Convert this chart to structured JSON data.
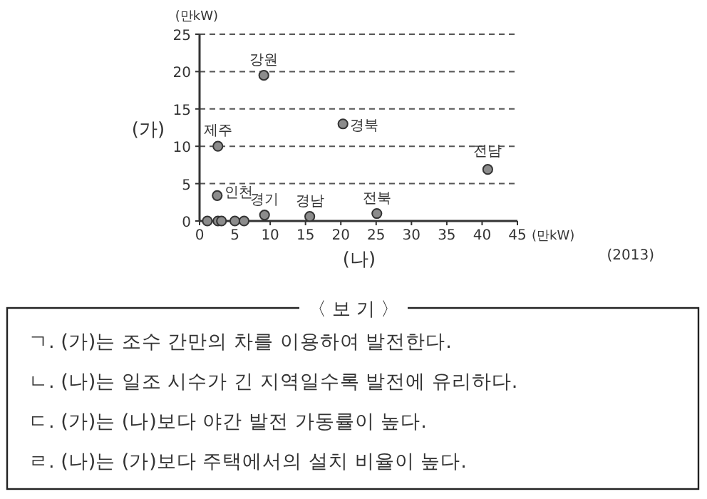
{
  "chart_data": {
    "type": "scatter",
    "xlabel": "(나)",
    "ylabel": "(가)",
    "x": [
      9.1,
      20.3,
      2.6,
      2.5,
      9.2,
      15.6,
      25.1,
      40.8,
      1.1,
      2.6,
      3.1,
      5.0,
      6.3
    ],
    "values": [
      19.5,
      13.0,
      10.0,
      3.4,
      0.8,
      0.6,
      1.0,
      6.9,
      0,
      0,
      0,
      0,
      0
    ],
    "color": "#8c8c8c",
    "marker": "circle",
    "grid": "y",
    "xlim": [
      0,
      45
    ],
    "xticks": [
      0,
      5,
      10,
      15,
      20,
      25,
      30,
      35,
      40,
      45
    ],
    "ylim": [
      0,
      25
    ],
    "yticks": [
      0,
      5,
      10,
      15,
      20,
      25
    ],
    "annotations": [
      {
        "text": "강원",
        "x": 9.1,
        "y": 19.5
      },
      {
        "text": "경북",
        "x": 20.3,
        "y": 13.0
      },
      {
        "text": "제주",
        "x": 2.6,
        "y": 10.0
      },
      {
        "text": "인천",
        "x": 2.5,
        "y": 3.4
      },
      {
        "text": "경기",
        "x": 9.2,
        "y": 0.8
      },
      {
        "text": "경남",
        "x": 15.6,
        "y": 0.6
      },
      {
        "text": "전북",
        "x": 25.1,
        "y": 1.0
      },
      {
        "text": "전남",
        "x": 40.8,
        "y": 6.9
      },
      "(만kW)",
      "(만kW)",
      "(2013)",
      "〈 보 기 〉",
      "ㄱ. (가)는 조수 간만의 차를 이용하여 발전한다.",
      "ㄴ. (나)는 일조 시수가 긴 지역일수록 발전에 유리하다.",
      "ㄷ. (가)는 (나)보다 야간 발전 가동률이 높다.",
      "ㄹ. (나)는 (가)보다 주택에서의 설치 비율이 높다."
    ]
  }
}
